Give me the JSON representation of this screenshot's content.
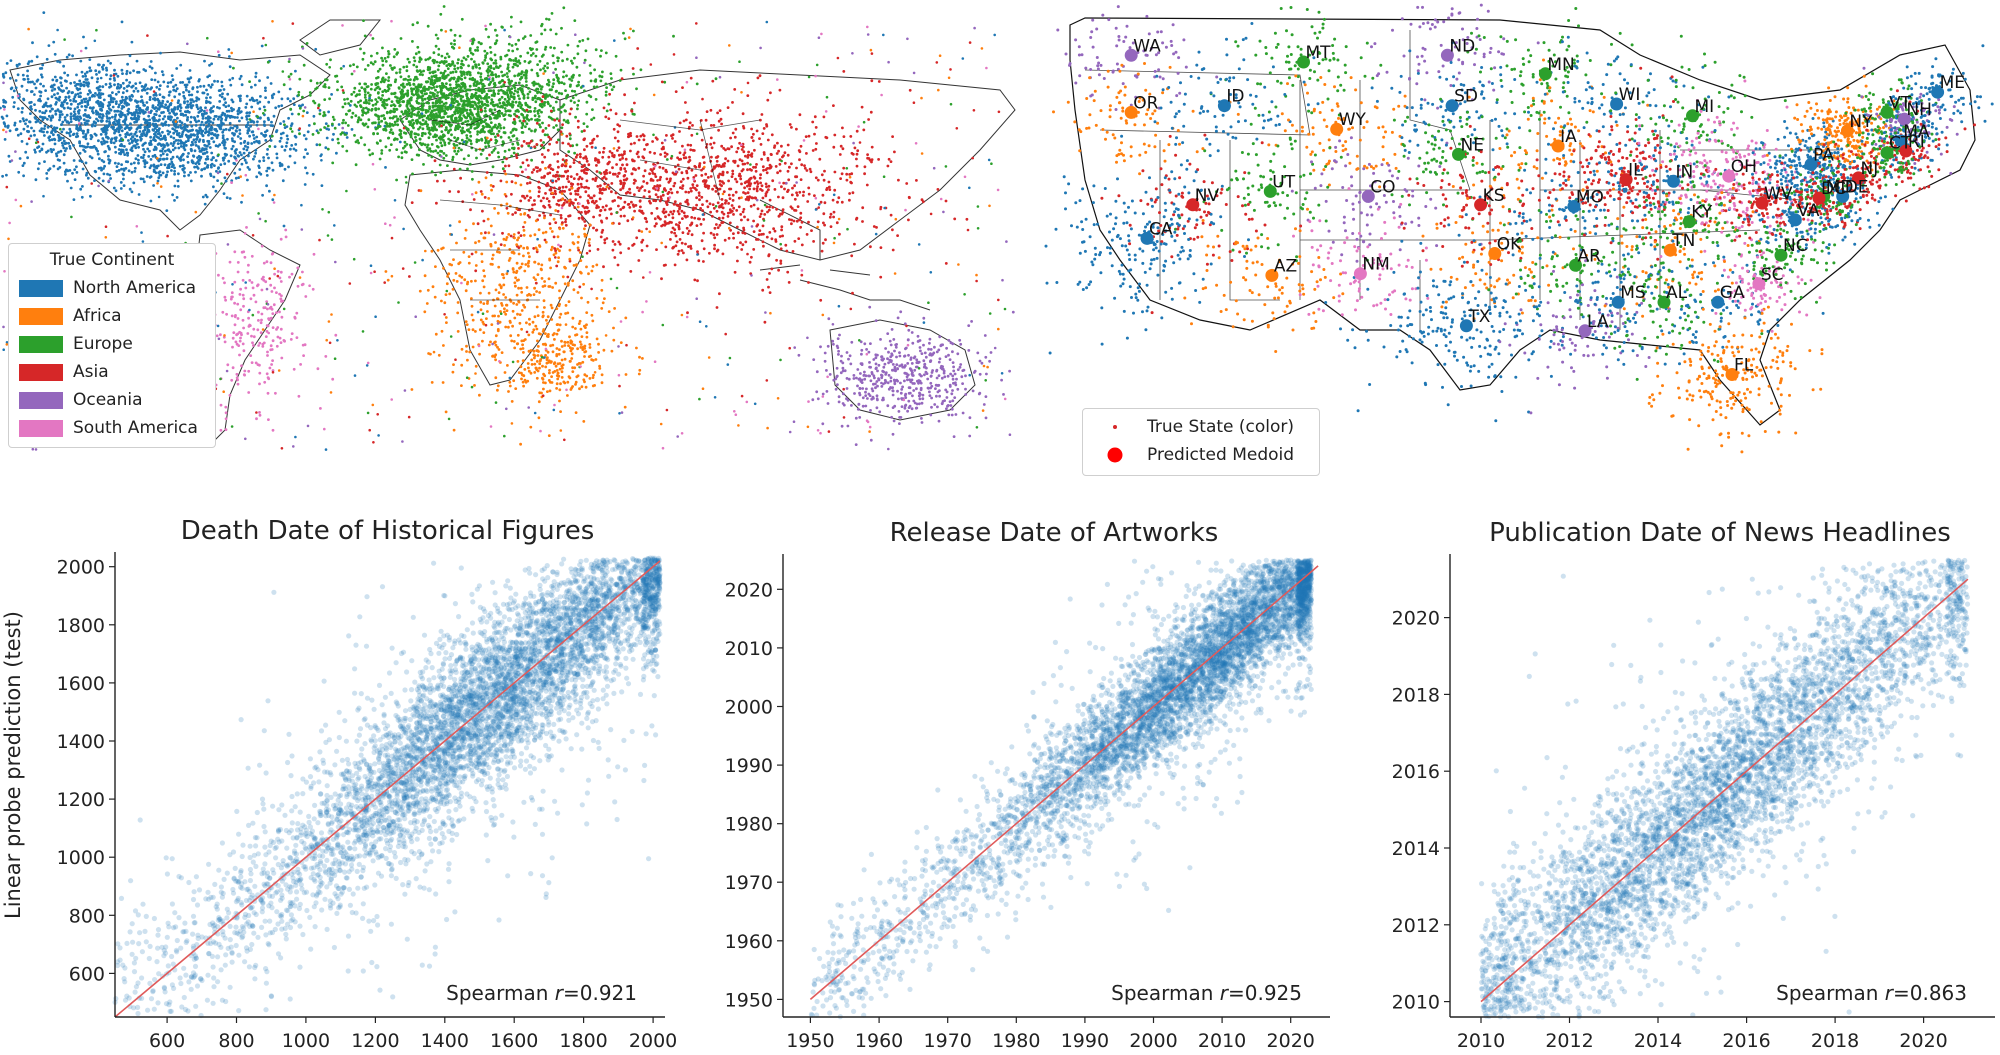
{
  "colors": {
    "North America": "#1f77b4",
    "Africa": "#ff7f0e",
    "Europe": "#2ca02c",
    "Asia": "#d62728",
    "Oceania": "#9467bd",
    "South America": "#e377c2",
    "fit_line": "#e05a5a",
    "scatter": "#1f77b4"
  },
  "world_map": {
    "legend_title": "True Continent",
    "legend_items": [
      "North America",
      "Africa",
      "Europe",
      "Asia",
      "Oceania",
      "South America"
    ]
  },
  "us_map": {
    "legend_items": [
      "True State (color)",
      "Predicted Medoid"
    ],
    "states": [
      {
        "code": "WA",
        "color": "Oceania",
        "lon": -120.5,
        "lat": 47.4
      },
      {
        "code": "OR",
        "color": "Africa",
        "lon": -120.5,
        "lat": 44.0
      },
      {
        "code": "MT",
        "color": "Europe",
        "lon": -109.6,
        "lat": 47.0
      },
      {
        "code": "ID",
        "color": "North America",
        "lon": -114.6,
        "lat": 44.4
      },
      {
        "code": "WY",
        "color": "Africa",
        "lon": -107.5,
        "lat": 43.0
      },
      {
        "code": "UT",
        "color": "Europe",
        "lon": -111.7,
        "lat": 39.3
      },
      {
        "code": "CO",
        "color": "Oceania",
        "lon": -105.5,
        "lat": 39.0
      },
      {
        "code": "NV",
        "color": "Asia",
        "lon": -116.6,
        "lat": 38.5
      },
      {
        "code": "CA",
        "color": "North America",
        "lon": -119.5,
        "lat": 36.5
      },
      {
        "code": "AZ",
        "color": "Africa",
        "lon": -111.6,
        "lat": 34.3
      },
      {
        "code": "NM",
        "color": "South America",
        "lon": -106.0,
        "lat": 34.4
      },
      {
        "code": "ND",
        "color": "Oceania",
        "lon": -100.5,
        "lat": 47.4
      },
      {
        "code": "SD",
        "color": "North America",
        "lon": -100.2,
        "lat": 44.4
      },
      {
        "code": "NE",
        "color": "Europe",
        "lon": -99.8,
        "lat": 41.5
      },
      {
        "code": "KS",
        "color": "Asia",
        "lon": -98.4,
        "lat": 38.5
      },
      {
        "code": "OK",
        "color": "Africa",
        "lon": -97.5,
        "lat": 35.6
      },
      {
        "code": "TX",
        "color": "North America",
        "lon": -99.3,
        "lat": 31.3
      },
      {
        "code": "MN",
        "color": "Europe",
        "lon": -94.3,
        "lat": 46.3
      },
      {
        "code": "IA",
        "color": "Africa",
        "lon": -93.5,
        "lat": 42.0
      },
      {
        "code": "MO",
        "color": "North America",
        "lon": -92.5,
        "lat": 38.4
      },
      {
        "code": "AR",
        "color": "Europe",
        "lon": -92.4,
        "lat": 34.9
      },
      {
        "code": "LA",
        "color": "Oceania",
        "lon": -91.8,
        "lat": 31.0
      },
      {
        "code": "WI",
        "color": "North America",
        "lon": -89.8,
        "lat": 44.5
      },
      {
        "code": "IL",
        "color": "Asia",
        "lon": -89.2,
        "lat": 40.0
      },
      {
        "code": "MI",
        "color": "Europe",
        "lon": -85.0,
        "lat": 43.8
      },
      {
        "code": "IN",
        "color": "North America",
        "lon": -86.2,
        "lat": 39.9
      },
      {
        "code": "OH",
        "color": "South America",
        "lon": -82.7,
        "lat": 40.2
      },
      {
        "code": "KY",
        "color": "Europe",
        "lon": -85.2,
        "lat": 37.5
      },
      {
        "code": "TN",
        "color": "Africa",
        "lon": -86.4,
        "lat": 35.8
      },
      {
        "code": "MS",
        "color": "North America",
        "lon": -89.7,
        "lat": 32.7
      },
      {
        "code": "AL",
        "color": "Europe",
        "lon": -86.8,
        "lat": 32.7
      },
      {
        "code": "GA",
        "color": "North America",
        "lon": -83.4,
        "lat": 32.7
      },
      {
        "code": "FL",
        "color": "Africa",
        "lon": -82.5,
        "lat": 28.4
      },
      {
        "code": "SC",
        "color": "South America",
        "lon": -80.8,
        "lat": 33.8
      },
      {
        "code": "NC",
        "color": "Europe",
        "lon": -79.4,
        "lat": 35.5
      },
      {
        "code": "VA",
        "color": "North America",
        "lon": -78.5,
        "lat": 37.6
      },
      {
        "code": "WV",
        "color": "Asia",
        "lon": -80.6,
        "lat": 38.6
      },
      {
        "code": "PA",
        "color": "North America",
        "lon": -77.5,
        "lat": 40.9
      },
      {
        "code": "NY",
        "color": "Africa",
        "lon": -75.2,
        "lat": 42.9
      },
      {
        "code": "VT",
        "color": "Europe",
        "lon": -72.7,
        "lat": 44.0
      },
      {
        "code": "ME",
        "color": "North America",
        "lon": -69.5,
        "lat": 45.2
      },
      {
        "code": "NH",
        "color": "Oceania",
        "lon": -71.6,
        "lat": 43.6
      },
      {
        "code": "MA",
        "color": "North America",
        "lon": -71.8,
        "lat": 42.3
      },
      {
        "code": "RI",
        "color": "Asia",
        "lon": -71.5,
        "lat": 41.7
      },
      {
        "code": "CT",
        "color": "Europe",
        "lon": -72.7,
        "lat": 41.6
      },
      {
        "code": "NJ",
        "color": "Asia",
        "lon": -74.5,
        "lat": 40.1
      },
      {
        "code": "DE",
        "color": "North America",
        "lon": -75.5,
        "lat": 39.0
      },
      {
        "code": "MD",
        "color": "Europe",
        "lon": -76.7,
        "lat": 39.0
      },
      {
        "code": "DC",
        "color": "Asia",
        "lon": -77.0,
        "lat": 38.9
      }
    ]
  },
  "shared_ylabel": "Linear probe prediction (test)",
  "chart_data": [
    {
      "type": "scatter",
      "title": "Death Date of Historical Figures",
      "xlabel": "",
      "ylabel": "Linear probe prediction (test)",
      "xlim": [
        450,
        2020
      ],
      "ylim": [
        450,
        2030
      ],
      "xticks": [
        600,
        800,
        1000,
        1200,
        1400,
        1600,
        1800,
        2000
      ],
      "yticks": [
        600,
        800,
        1000,
        1200,
        1400,
        1600,
        1800,
        2000
      ],
      "fit_line": [
        [
          450,
          450
        ],
        [
          2020,
          2020
        ]
      ],
      "annotation": "Spearman r=0.921",
      "annotation_prefix": "Spearman ",
      "annotation_var": "r",
      "annotation_value": "=0.921",
      "x_distribution": {
        "min": 450,
        "max": 2020,
        "center": 1600,
        "spread": 330
      },
      "noise_sd": 140,
      "points": 6000
    },
    {
      "type": "scatter",
      "title": "Release Date of Artworks",
      "xlabel": "",
      "ylabel": "",
      "xlim": [
        1946,
        2025
      ],
      "ylim": [
        1947,
        2025
      ],
      "xticks": [
        1950,
        1960,
        1970,
        1980,
        1990,
        2000,
        2010,
        2020
      ],
      "yticks": [
        1950,
        1960,
        1970,
        1980,
        1990,
        2000,
        2010,
        2020
      ],
      "fit_line": [
        [
          1950,
          1950
        ],
        [
          2024,
          2024
        ]
      ],
      "annotation": "Spearman r=0.925",
      "annotation_prefix": "Spearman ",
      "annotation_var": "r",
      "annotation_value": "=0.925",
      "x_distribution": {
        "min": 1950,
        "max": 2023,
        "center": 2008,
        "spread": 14
      },
      "noise_sd": 5,
      "points": 6000
    },
    {
      "type": "scatter",
      "title": "Publication Date of News Headlines",
      "xlabel": "",
      "ylabel": "",
      "xlim": [
        2009.3,
        2021.5
      ],
      "ylim": [
        2009.6,
        2021.5
      ],
      "xticks": [
        2010,
        2012,
        2014,
        2016,
        2018,
        2020
      ],
      "yticks": [
        2010,
        2012,
        2014,
        2016,
        2018,
        2020
      ],
      "fit_line": [
        [
          2010,
          2010
        ],
        [
          2021,
          2021
        ]
      ],
      "annotation": "Spearman r=0.863",
      "annotation_prefix": "Spearman ",
      "annotation_var": "r",
      "annotation_value": "=0.863",
      "x_distribution": {
        "min": 2010,
        "max": 2021,
        "center": 2015.5,
        "spread": 3.2
      },
      "noise_sd": 1.2,
      "points": 5000
    }
  ]
}
